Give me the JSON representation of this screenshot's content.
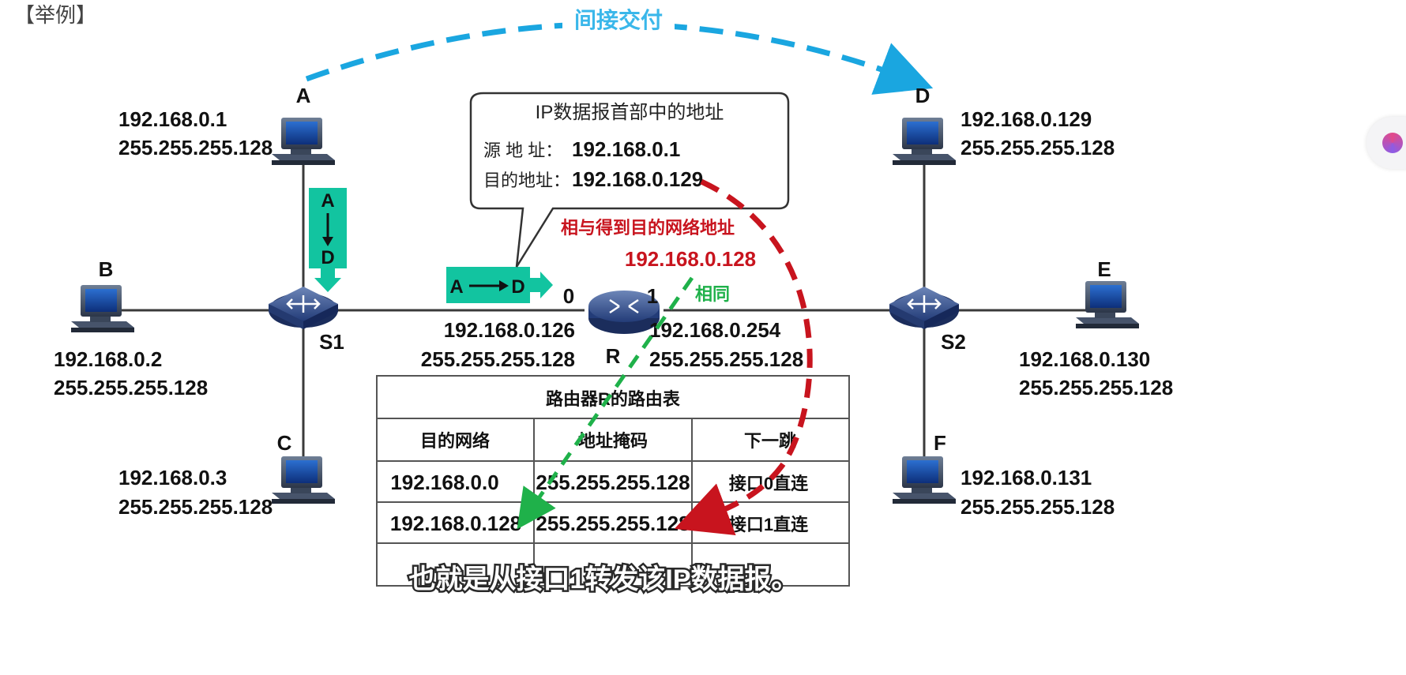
{
  "example_label": "【举例】",
  "indirect_delivery_label": "间接交付",
  "hosts": {
    "A": {
      "name": "A",
      "ip": "192.168.0.1",
      "mask": "255.255.255.128"
    },
    "B": {
      "name": "B",
      "ip": "192.168.0.2",
      "mask": "255.255.255.128"
    },
    "C": {
      "name": "C",
      "ip": "192.168.0.3",
      "mask": "255.255.255.128"
    },
    "D": {
      "name": "D",
      "ip": "192.168.0.129",
      "mask": "255.255.255.128"
    },
    "E": {
      "name": "E",
      "ip": "192.168.0.130",
      "mask": "255.255.255.128"
    },
    "F": {
      "name": "F",
      "ip": "192.168.0.131",
      "mask": "255.255.255.128"
    }
  },
  "switches": {
    "S1": "S1",
    "S2": "S2"
  },
  "router": {
    "name": "R",
    "port0": {
      "label": "0",
      "ip": "192.168.0.126",
      "mask": "255.255.255.128"
    },
    "port1": {
      "label": "1",
      "ip": "192.168.0.254",
      "mask": "255.255.255.128"
    }
  },
  "packet_vertical": {
    "from": "A",
    "to": "D"
  },
  "packet_horizontal": {
    "from": "A",
    "to": "D"
  },
  "callout": {
    "title": "IP数据报首部中的地址",
    "src_label": "源 地 址：",
    "src_value": "192.168.0.1",
    "dst_label": "目的地址：",
    "dst_value": "192.168.0.129"
  },
  "and_result_label": "相与得到目的网络地址",
  "and_result_value": "192.168.0.128",
  "same_label": "相同",
  "routing_table": {
    "title": "路由器R的路由表",
    "headers": [
      "目的网络",
      "地址掩码",
      "下一跳"
    ],
    "rows": [
      [
        "192.168.0.0",
        "255.255.255.128",
        "接口0直连"
      ],
      [
        "192.168.0.128",
        "255.255.255.128",
        "接口1直连"
      ]
    ]
  },
  "subtitle": "也就是从接口1转发该IP数据报。",
  "colors": {
    "indirect": "#1aa6e0",
    "and_path": "#c8141e",
    "same_path": "#1fb14a",
    "packet": "#12c4a0"
  }
}
